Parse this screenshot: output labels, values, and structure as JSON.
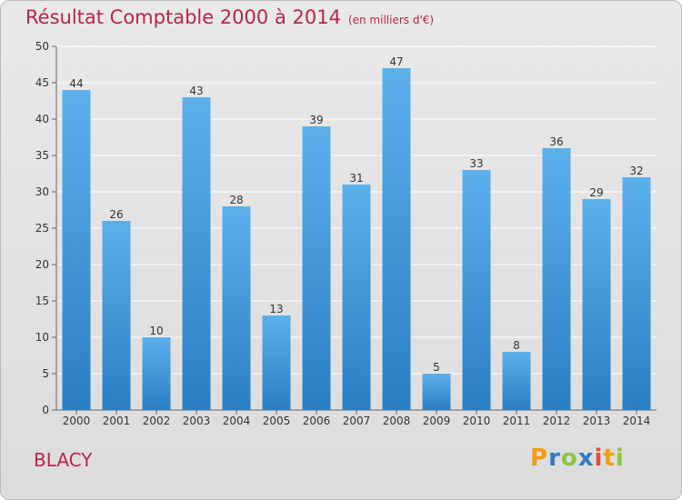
{
  "header": {
    "title": "Résultat Comptable 2000 à 2014",
    "subtitle": "(en milliers d'€)"
  },
  "commune": "BLACY",
  "logo": {
    "letters": [
      "P",
      "r",
      "o",
      "x",
      "i",
      "t",
      "i"
    ],
    "colors": [
      "#f39c12",
      "#2e7bc4",
      "#8cc63f",
      "#2e7bc4",
      "#e74c3c",
      "#f39c12",
      "#8cc63f"
    ]
  },
  "chart_data": {
    "type": "bar",
    "categories": [
      "2000",
      "2001",
      "2002",
      "2003",
      "2004",
      "2005",
      "2006",
      "2007",
      "2008",
      "2009",
      "2010",
      "2011",
      "2012",
      "2013",
      "2014"
    ],
    "values": [
      44,
      26,
      10,
      43,
      28,
      13,
      39,
      31,
      47,
      5,
      33,
      8,
      36,
      29,
      32
    ],
    "title": "Résultat Comptable 2000 à 2014",
    "xlabel": "",
    "ylabel": "",
    "ylim": [
      0,
      50
    ],
    "yticks": [
      0,
      5,
      10,
      15,
      20,
      25,
      30,
      35,
      40,
      45,
      50
    ],
    "grid": true,
    "bar_color_top": "#5cb0ea",
    "bar_color_bottom": "#2a7ec3"
  }
}
